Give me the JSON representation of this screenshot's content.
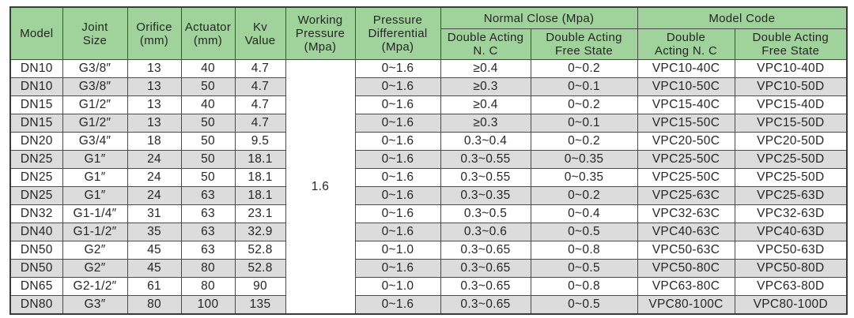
{
  "table": {
    "title_semantic": "valve-specification-table",
    "colors": {
      "header_bg": "#a0d29b",
      "stripe_bg": "#dcdcdc",
      "row_bg": "#ffffff",
      "border": "#4a4a4a",
      "text": "#262626"
    },
    "headers": {
      "model": "Model",
      "joint_size": "Joint\nSize",
      "orifice": "Orifice\n(mm)",
      "actuator": "Actuator\n(mm)",
      "kv_value": "Kv\nValue",
      "working_pressure": "Working\nPressure\n(Mpa)",
      "pressure_differential": "Pressure\nDifferential\n(Mpa)",
      "normal_close_group": "Normal Close (Mpa)",
      "model_code_group": "Model Code",
      "nc_double_acting_nc": "Double Acting\nN. C",
      "nc_double_acting_free": "Double Acting\nFree State",
      "mc_double_acting_nc": "Double\nActing N. C",
      "mc_double_acting_free": "Double Acting\nFree State"
    },
    "working_pressure_value": "1.6",
    "rows": [
      {
        "model": "DN10",
        "joint_size": "G3/8″",
        "orifice_mm": "13",
        "actuator_mm": "40",
        "kv_value": "4.7",
        "pressure_differential": "0~1.6",
        "nc_double_acting": "≥0.4",
        "nc_free_state": "0~0.2",
        "code_double_acting": "VPC10-40C",
        "code_free_state": "VPC10-40D"
      },
      {
        "model": "DN10",
        "joint_size": "G3/8″",
        "orifice_mm": "13",
        "actuator_mm": "50",
        "kv_value": "4.7",
        "pressure_differential": "0~1.6",
        "nc_double_acting": "≥0.3",
        "nc_free_state": "0~0.1",
        "code_double_acting": "VPC10-50C",
        "code_free_state": "VPC10-50D"
      },
      {
        "model": "DN15",
        "joint_size": "G1/2″",
        "orifice_mm": "13",
        "actuator_mm": "40",
        "kv_value": "4.7",
        "pressure_differential": "0~1.6",
        "nc_double_acting": "≥0.4",
        "nc_free_state": "0~0.2",
        "code_double_acting": "VPC15-40C",
        "code_free_state": "VPC15-40D"
      },
      {
        "model": "DN15",
        "joint_size": "G1/2″",
        "orifice_mm": "13",
        "actuator_mm": "50",
        "kv_value": "4.7",
        "pressure_differential": "0~1.6",
        "nc_double_acting": "≥0.3",
        "nc_free_state": "0~0.1",
        "code_double_acting": "VPC15-50C",
        "code_free_state": "VPC15-50D"
      },
      {
        "model": "DN20",
        "joint_size": "G3/4″",
        "orifice_mm": "18",
        "actuator_mm": "50",
        "kv_value": "9.5",
        "pressure_differential": "0~1.6",
        "nc_double_acting": "0.3~0.4",
        "nc_free_state": "0~0.2",
        "code_double_acting": "VPC20-50C",
        "code_free_state": "VPC20-50D"
      },
      {
        "model": "DN25",
        "joint_size": "G1″",
        "orifice_mm": "24",
        "actuator_mm": "50",
        "kv_value": "18.1",
        "pressure_differential": "0~1.6",
        "nc_double_acting": "0.3~0.55",
        "nc_free_state": "0~0.35",
        "code_double_acting": "VPC25-50C",
        "code_free_state": "VPC25-50D"
      },
      {
        "model": "DN25",
        "joint_size": "G1″",
        "orifice_mm": "24",
        "actuator_mm": "50",
        "kv_value": "18.1",
        "pressure_differential": "0~1.6",
        "nc_double_acting": "0.3~0.55",
        "nc_free_state": "0~0.35",
        "code_double_acting": "VPC25-50C",
        "code_free_state": "VPC25-50D"
      },
      {
        "model": "DN25",
        "joint_size": "G1″",
        "orifice_mm": "24",
        "actuator_mm": "63",
        "kv_value": "18.1",
        "pressure_differential": "0~1.6",
        "nc_double_acting": "0.3~0.35",
        "nc_free_state": "0~0.2",
        "code_double_acting": "VPC25-63C",
        "code_free_state": "VPC25-63D"
      },
      {
        "model": "DN32",
        "joint_size": "G1-1/4″",
        "orifice_mm": "31",
        "actuator_mm": "63",
        "kv_value": "23.1",
        "pressure_differential": "0~1.6",
        "nc_double_acting": "0.3~0.5",
        "nc_free_state": "0~0.4",
        "code_double_acting": "VPC32-63C",
        "code_free_state": "VPC32-63D"
      },
      {
        "model": "DN40",
        "joint_size": "G1-1/2″",
        "orifice_mm": "35",
        "actuator_mm": "63",
        "kv_value": "32.9",
        "pressure_differential": "0~1.6",
        "nc_double_acting": "0.3~0.6",
        "nc_free_state": "0~0.5",
        "code_double_acting": "VPC40-63C",
        "code_free_state": "VPC40-63D"
      },
      {
        "model": "DN50",
        "joint_size": "G2″",
        "orifice_mm": "45",
        "actuator_mm": "63",
        "kv_value": "52.8",
        "pressure_differential": "0~1.0",
        "nc_double_acting": "0.3~0.65",
        "nc_free_state": "0~0.8",
        "code_double_acting": "VPC50-63C",
        "code_free_state": "VPC50-63D"
      },
      {
        "model": "DN50",
        "joint_size": "G2″",
        "orifice_mm": "45",
        "actuator_mm": "80",
        "kv_value": "52.8",
        "pressure_differential": "0~1.6",
        "nc_double_acting": "0.3~0.65",
        "nc_free_state": "0~0.5",
        "code_double_acting": "VPC50-80C",
        "code_free_state": "VPC50-80D"
      },
      {
        "model": "DN65",
        "joint_size": "G2-1/2″",
        "orifice_mm": "61",
        "actuator_mm": "80",
        "kv_value": "90",
        "pressure_differential": "0~1.0",
        "nc_double_acting": "0.3~0.65",
        "nc_free_state": "0~0.8",
        "code_double_acting": "VPC63-80C",
        "code_free_state": "VPC63-80D"
      },
      {
        "model": "DN80",
        "joint_size": "G3″",
        "orifice_mm": "80",
        "actuator_mm": "100",
        "kv_value": "135",
        "pressure_differential": "0~1.6",
        "nc_double_acting": "0.3~0.65",
        "nc_free_state": "0~0.5",
        "code_double_acting": "VPC80-100C",
        "code_free_state": "VPC80-100D"
      }
    ]
  }
}
